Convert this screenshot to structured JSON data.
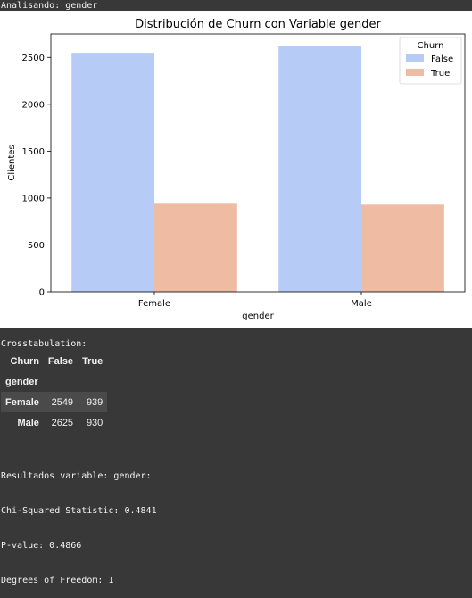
{
  "header": {
    "text": "Analisando: gender"
  },
  "chart_data": {
    "type": "bar",
    "title": "Distribución de Churn con Variable gender",
    "xlabel": "gender",
    "ylabel": "Clientes",
    "categories": [
      "Female",
      "Male"
    ],
    "series": [
      {
        "name": "False",
        "values": [
          2549,
          2625
        ],
        "color": "#b6ccf7"
      },
      {
        "name": "True",
        "values": [
          939,
          930
        ],
        "color": "#efbba3"
      }
    ],
    "ylim": [
      0,
      2750
    ],
    "yticks": [
      0,
      500,
      1000,
      1500,
      2000,
      2500
    ],
    "legend": {
      "title": "Churn",
      "placement": "top-right"
    },
    "grid": false
  },
  "crosstab": {
    "title": "Crosstabulation:",
    "columns_name": "Churn",
    "columns": [
      "False",
      "True"
    ],
    "index_name": "gender",
    "rows": [
      {
        "label": "Female",
        "values": [
          "2549",
          "939"
        ]
      },
      {
        "label": "Male",
        "values": [
          "2625",
          "930"
        ]
      }
    ]
  },
  "results": {
    "line1": "Resultados variable: gender:",
    "line2": "Chi-Squared Statistic: 0.4841",
    "line3": "P-value: 0.4866",
    "line4": "Degrees of Freedom: 1"
  }
}
